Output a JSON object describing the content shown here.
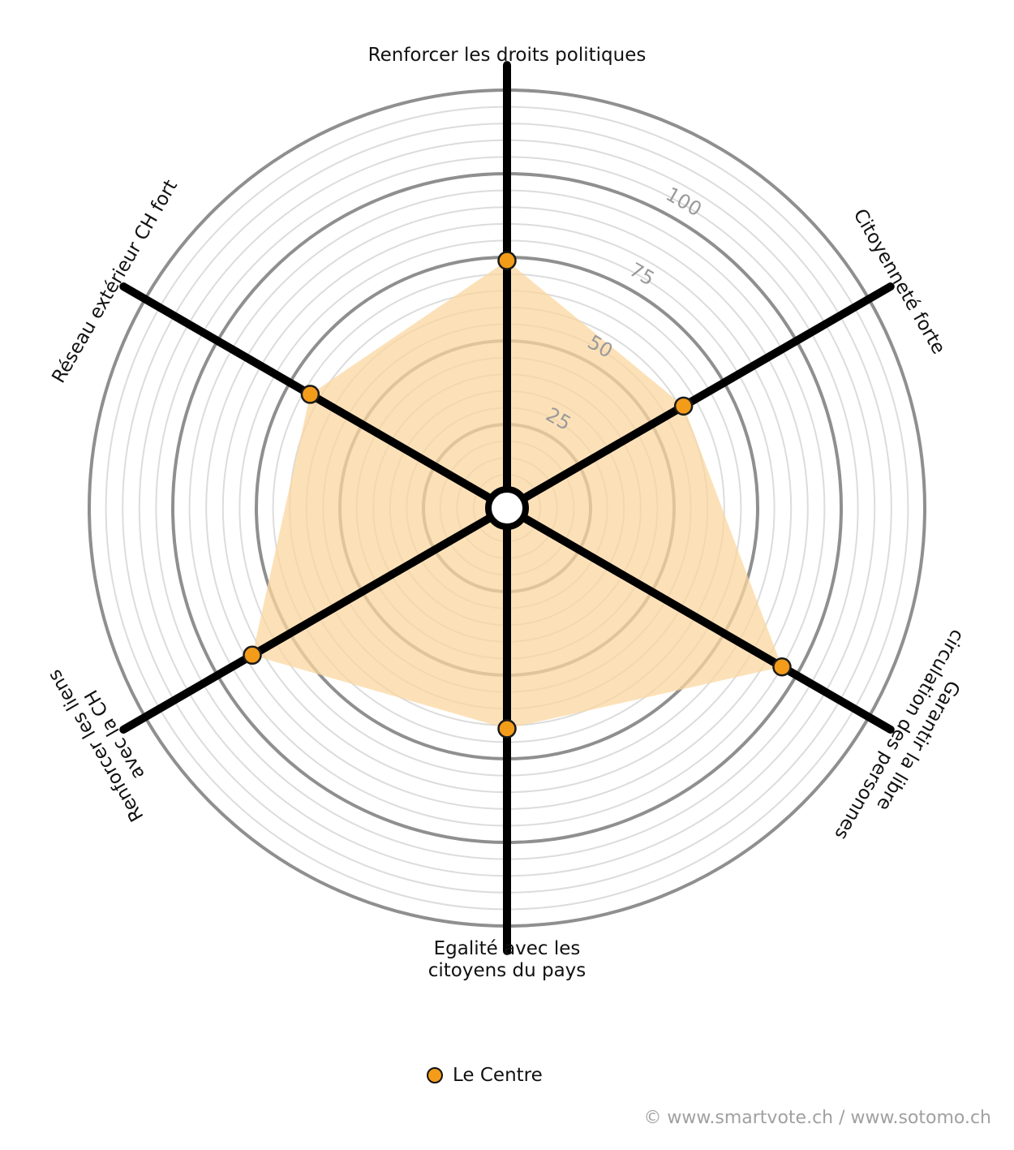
{
  "chart_data": {
    "type": "radar",
    "axes": [
      "Renforcer les droits politiques",
      "Citoyenneté forte",
      "Garantir la libre circulation des personnes",
      "Egalité avec les citoyens du pays",
      "Renforcer les liens avec la CH",
      "Réseau extérieur CH fort"
    ],
    "axis_label_lines": [
      [
        "Renforcer les droits politiques"
      ],
      [
        "Citoyenneté forte"
      ],
      [
        "Garantir la libre",
        "circulation des personnes"
      ],
      [
        "Egalité avec les",
        "citoyens du pays"
      ],
      [
        "Renforcer les liens",
        "avec la CH"
      ],
      [
        "Réseau extérieur CH fort"
      ]
    ],
    "series": [
      {
        "name": "Le Centre",
        "values": [
          74,
          61,
          95,
          66,
          88,
          68
        ],
        "color": "#f39c1a",
        "fill": "#fbd7a0"
      }
    ],
    "rlim": [
      0,
      125
    ],
    "ticks": [
      25,
      50,
      75,
      100
    ],
    "grid": true,
    "legend_position": "bottom-center"
  },
  "copyright": "© www.smartvote.ch / www.sotomo.ch"
}
